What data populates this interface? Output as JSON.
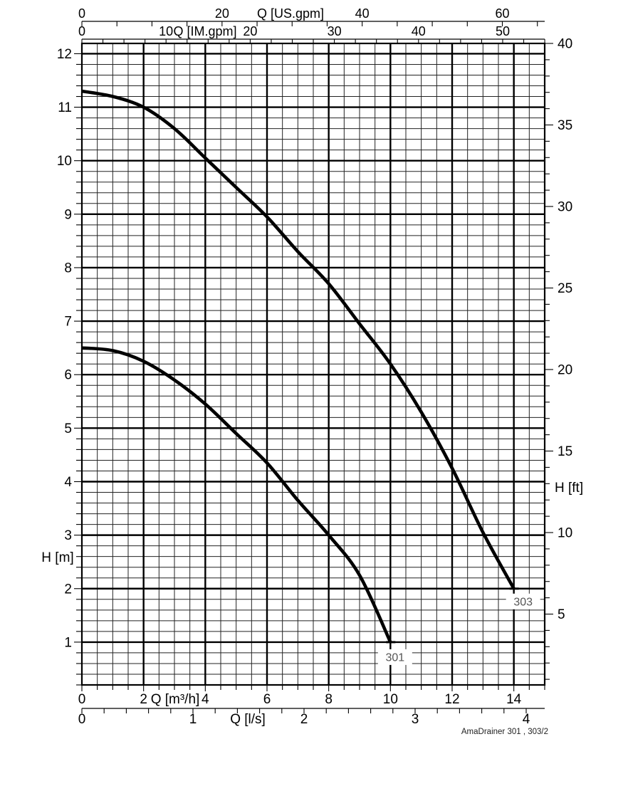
{
  "page": {
    "background": "#ffffff"
  },
  "footer": {
    "caption": "AmaDrainer 301 , 303/2"
  },
  "chart_data": {
    "type": "line",
    "title": "",
    "grid": "on",
    "colors": {
      "curve": "#000000",
      "grid_minor": "#222222",
      "grid_major": "#000000",
      "curve_label_text": "#555555"
    },
    "axes": {
      "x_top_us_gpm": {
        "label": "Q [US.gpm]",
        "labeled_ticks": [
          0,
          20,
          40,
          60
        ],
        "minor_step": 5,
        "to_m3h": 0.22712
      },
      "x_top_im_gpm": {
        "label": "Q [IM.gpm]",
        "labeled_ticks": [
          0,
          10,
          20,
          30,
          40,
          50
        ],
        "minor_step": 2.5,
        "to_m3h": 0.27276
      },
      "x_bottom_m3h": {
        "label": "Q [m³/h]",
        "range": [
          0,
          15
        ],
        "labeled_ticks": [
          0,
          2,
          4,
          6,
          8,
          10,
          12,
          14
        ],
        "minor_step": 0.5,
        "major_step": 2
      },
      "x_bottom_l_s": {
        "label": "Q [l/s]",
        "labeled_ticks": [
          0,
          1,
          2,
          3,
          4
        ],
        "minor_step": 0.2,
        "to_m3h": 3.6
      },
      "y_left_m": {
        "label": "H [m]",
        "range": [
          0.2,
          12.192
        ],
        "labeled_ticks": [
          1,
          2,
          3,
          4,
          5,
          6,
          7,
          8,
          9,
          10,
          11,
          12
        ],
        "minor_step": 0.2,
        "major_step": 1
      },
      "y_right_ft": {
        "label": "H [ft]",
        "labeled_ticks": [
          5,
          10,
          15,
          20,
          25,
          30,
          35,
          40
        ],
        "minor_step": 1,
        "to_m": 0.3048
      }
    },
    "series": [
      {
        "name": "301",
        "label": "301",
        "label_at_q_h": [
          10.15,
          0.72
        ],
        "points_q_m3h_h_m": [
          [
            0,
            6.5
          ],
          [
            1,
            6.45
          ],
          [
            2,
            6.25
          ],
          [
            3,
            5.9
          ],
          [
            4,
            5.45
          ],
          [
            5,
            4.9
          ],
          [
            6,
            4.35
          ],
          [
            7,
            3.65
          ],
          [
            8,
            3.0
          ],
          [
            9,
            2.25
          ],
          [
            10,
            1.0
          ]
        ]
      },
      {
        "name": "303",
        "label": "303",
        "label_at_q_h": [
          14.3,
          1.76
        ],
        "points_q_m3h_h_m": [
          [
            0,
            11.3
          ],
          [
            1,
            11.2
          ],
          [
            2,
            11.0
          ],
          [
            3,
            10.6
          ],
          [
            4,
            10.05
          ],
          [
            5,
            9.5
          ],
          [
            6,
            8.95
          ],
          [
            7,
            8.3
          ],
          [
            8,
            7.7
          ],
          [
            9,
            6.95
          ],
          [
            10,
            6.2
          ],
          [
            11,
            5.3
          ],
          [
            12,
            4.25
          ],
          [
            13,
            3.05
          ],
          [
            14,
            2.0
          ]
        ]
      }
    ]
  }
}
